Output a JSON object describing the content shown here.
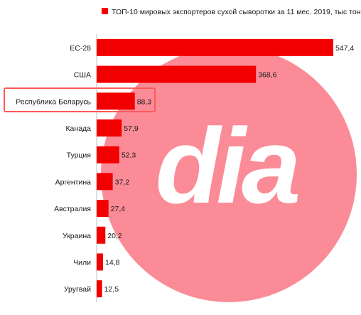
{
  "chart_data": {
    "type": "bar",
    "orientation": "horizontal",
    "title": "",
    "legend": {
      "label": "ТОП-10 мировых экспортеров сухой сыворотки за 11 мес. 2019, тыс тонн",
      "placement": "top"
    },
    "categories": [
      "ЕС-28",
      "США",
      "Республика Беларусь",
      "Канада",
      "Турция",
      "Аргентина",
      "Австралия",
      "Украина",
      "Чили",
      "Уругвай"
    ],
    "values": [
      547.4,
      368.6,
      88.3,
      57.9,
      52.3,
      37.2,
      27.4,
      20.2,
      14.8,
      12.5
    ],
    "value_labels": [
      "547,4",
      "368,6",
      "88,3",
      "57,9",
      "52,3",
      "37,2",
      "27,4",
      "20,2",
      "14,8",
      "12,5"
    ],
    "highlighted_category": "Республика Беларусь",
    "xlim": [
      0,
      547.4
    ],
    "grid": false,
    "colors": {
      "bar": "#f20000",
      "highlight_box": "#ff5a5a",
      "watermark": "#fb8c97",
      "text": "#1a1a1a"
    },
    "watermark_logo": "dia"
  }
}
